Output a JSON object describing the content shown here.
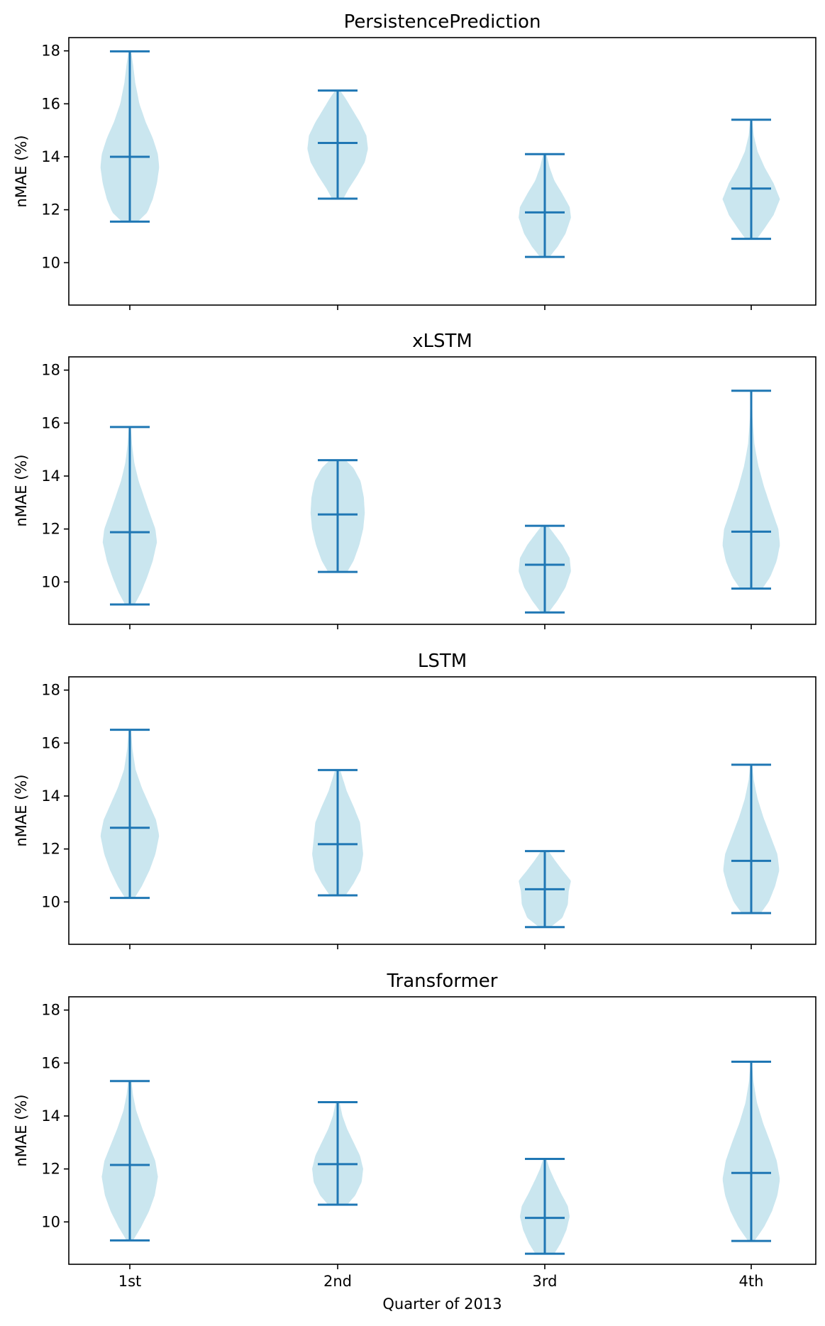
{
  "chart_data": [
    {
      "type": "violin",
      "title": "PersistencePrediction",
      "ylabel": "nMAE (%)",
      "xlabel": "",
      "categories": [
        "1st",
        "2nd",
        "3rd",
        "4th"
      ],
      "ylim": [
        8.4,
        18.5
      ],
      "yticks": [
        "10",
        "12",
        "14",
        "16",
        "18"
      ],
      "grid": false,
      "series": [
        {
          "category": "1st",
          "min": 11.55,
          "median": 14.0,
          "max": 17.98,
          "profile": [
            [
              11.55,
              0.25
            ],
            [
              11.9,
              0.55
            ],
            [
              12.4,
              0.72
            ],
            [
              13.0,
              0.85
            ],
            [
              13.6,
              0.92
            ],
            [
              14.1,
              0.88
            ],
            [
              14.7,
              0.72
            ],
            [
              15.3,
              0.5
            ],
            [
              16.0,
              0.3
            ],
            [
              16.8,
              0.17
            ],
            [
              17.5,
              0.1
            ],
            [
              17.98,
              0.04
            ]
          ]
        },
        {
          "category": "2nd",
          "min": 12.42,
          "median": 14.52,
          "max": 16.5,
          "profile": [
            [
              12.42,
              0.18
            ],
            [
              12.8,
              0.35
            ],
            [
              13.3,
              0.62
            ],
            [
              13.8,
              0.85
            ],
            [
              14.3,
              0.95
            ],
            [
              14.8,
              0.9
            ],
            [
              15.3,
              0.7
            ],
            [
              15.8,
              0.45
            ],
            [
              16.2,
              0.25
            ],
            [
              16.5,
              0.08
            ]
          ]
        },
        {
          "category": "3rd",
          "min": 10.22,
          "median": 11.9,
          "max": 14.1,
          "profile": [
            [
              10.22,
              0.15
            ],
            [
              10.6,
              0.4
            ],
            [
              11.1,
              0.65
            ],
            [
              11.7,
              0.82
            ],
            [
              12.1,
              0.78
            ],
            [
              12.6,
              0.55
            ],
            [
              13.1,
              0.3
            ],
            [
              13.6,
              0.15
            ],
            [
              14.1,
              0.05
            ]
          ]
        },
        {
          "category": "4th",
          "min": 10.9,
          "median": 12.8,
          "max": 15.4,
          "profile": [
            [
              10.9,
              0.18
            ],
            [
              11.3,
              0.42
            ],
            [
              11.8,
              0.7
            ],
            [
              12.4,
              0.9
            ],
            [
              13.0,
              0.7
            ],
            [
              13.6,
              0.42
            ],
            [
              14.2,
              0.2
            ],
            [
              14.8,
              0.08
            ],
            [
              15.4,
              0.03
            ]
          ]
        }
      ]
    },
    {
      "type": "violin",
      "title": "xLSTM",
      "ylabel": "nMAE (%)",
      "xlabel": "",
      "categories": [
        "1st",
        "2nd",
        "3rd",
        "4th"
      ],
      "ylim": [
        8.4,
        18.5
      ],
      "yticks": [
        "10",
        "12",
        "14",
        "16",
        "18"
      ],
      "grid": false,
      "series": [
        {
          "category": "1st",
          "min": 9.15,
          "median": 11.88,
          "max": 15.85,
          "profile": [
            [
              9.15,
              0.15
            ],
            [
              9.6,
              0.35
            ],
            [
              10.2,
              0.55
            ],
            [
              10.8,
              0.72
            ],
            [
              11.5,
              0.85
            ],
            [
              12.0,
              0.8
            ],
            [
              12.6,
              0.62
            ],
            [
              13.2,
              0.45
            ],
            [
              13.8,
              0.28
            ],
            [
              14.5,
              0.14
            ],
            [
              15.2,
              0.07
            ],
            [
              15.85,
              0.03
            ]
          ]
        },
        {
          "category": "2nd",
          "min": 10.38,
          "median": 12.55,
          "max": 14.6,
          "profile": [
            [
              10.38,
              0.3
            ],
            [
              10.8,
              0.5
            ],
            [
              11.4,
              0.68
            ],
            [
              12.0,
              0.8
            ],
            [
              12.6,
              0.85
            ],
            [
              13.2,
              0.82
            ],
            [
              13.8,
              0.72
            ],
            [
              14.3,
              0.5
            ],
            [
              14.6,
              0.25
            ]
          ]
        },
        {
          "category": "3rd",
          "min": 8.85,
          "median": 10.65,
          "max": 12.12,
          "profile": [
            [
              8.85,
              0.12
            ],
            [
              9.3,
              0.4
            ],
            [
              9.8,
              0.65
            ],
            [
              10.4,
              0.82
            ],
            [
              10.9,
              0.78
            ],
            [
              11.4,
              0.55
            ],
            [
              11.8,
              0.3
            ],
            [
              12.12,
              0.1
            ]
          ]
        },
        {
          "category": "4th",
          "min": 9.75,
          "median": 11.9,
          "max": 17.22,
          "profile": [
            [
              9.75,
              0.35
            ],
            [
              10.2,
              0.6
            ],
            [
              10.8,
              0.8
            ],
            [
              11.4,
              0.9
            ],
            [
              12.0,
              0.85
            ],
            [
              12.8,
              0.62
            ],
            [
              13.6,
              0.4
            ],
            [
              14.4,
              0.22
            ],
            [
              15.2,
              0.1
            ],
            [
              16.2,
              0.04
            ],
            [
              17.22,
              0.02
            ]
          ]
        }
      ]
    },
    {
      "type": "violin",
      "title": "LSTM",
      "ylabel": "nMAE (%)",
      "xlabel": "",
      "categories": [
        "1st",
        "2nd",
        "3rd",
        "4th"
      ],
      "ylim": [
        8.4,
        18.5
      ],
      "yticks": [
        "10",
        "12",
        "14",
        "16",
        "18"
      ],
      "grid": false,
      "series": [
        {
          "category": "1st",
          "min": 10.15,
          "median": 12.8,
          "max": 16.5,
          "profile": [
            [
              10.15,
              0.15
            ],
            [
              10.6,
              0.38
            ],
            [
              11.2,
              0.62
            ],
            [
              11.8,
              0.8
            ],
            [
              12.5,
              0.92
            ],
            [
              13.1,
              0.82
            ],
            [
              13.7,
              0.6
            ],
            [
              14.3,
              0.38
            ],
            [
              15.0,
              0.18
            ],
            [
              15.8,
              0.08
            ],
            [
              16.5,
              0.04
            ]
          ]
        },
        {
          "category": "2nd",
          "min": 10.25,
          "median": 12.18,
          "max": 14.98,
          "profile": [
            [
              10.25,
              0.25
            ],
            [
              10.7,
              0.5
            ],
            [
              11.2,
              0.72
            ],
            [
              11.8,
              0.8
            ],
            [
              12.4,
              0.75
            ],
            [
              13.0,
              0.7
            ],
            [
              13.6,
              0.5
            ],
            [
              14.2,
              0.28
            ],
            [
              14.98,
              0.08
            ]
          ]
        },
        {
          "category": "3rd",
          "min": 9.05,
          "median": 10.48,
          "max": 11.92,
          "profile": [
            [
              9.05,
              0.18
            ],
            [
              9.4,
              0.55
            ],
            [
              9.9,
              0.72
            ],
            [
              10.4,
              0.75
            ],
            [
              10.8,
              0.82
            ],
            [
              11.2,
              0.55
            ],
            [
              11.6,
              0.3
            ],
            [
              11.92,
              0.12
            ]
          ]
        },
        {
          "category": "4th",
          "min": 9.58,
          "median": 11.55,
          "max": 15.18,
          "profile": [
            [
              9.58,
              0.3
            ],
            [
              10.0,
              0.55
            ],
            [
              10.6,
              0.75
            ],
            [
              11.2,
              0.88
            ],
            [
              11.8,
              0.82
            ],
            [
              12.5,
              0.6
            ],
            [
              13.2,
              0.38
            ],
            [
              13.9,
              0.2
            ],
            [
              14.6,
              0.08
            ],
            [
              15.18,
              0.03
            ]
          ]
        }
      ]
    },
    {
      "type": "violin",
      "title": "Transformer",
      "ylabel": "nMAE (%)",
      "xlabel": "Quarter of 2013",
      "categories": [
        "1st",
        "2nd",
        "3rd",
        "4th"
      ],
      "ylim": [
        8.4,
        18.5
      ],
      "yticks": [
        "10",
        "12",
        "14",
        "16",
        "18"
      ],
      "grid": false,
      "series": [
        {
          "category": "1st",
          "min": 9.3,
          "median": 12.15,
          "max": 15.32,
          "profile": [
            [
              9.3,
              0.1
            ],
            [
              9.8,
              0.35
            ],
            [
              10.4,
              0.6
            ],
            [
              11.0,
              0.78
            ],
            [
              11.7,
              0.88
            ],
            [
              12.3,
              0.8
            ],
            [
              12.9,
              0.6
            ],
            [
              13.5,
              0.4
            ],
            [
              14.2,
              0.2
            ],
            [
              14.8,
              0.1
            ],
            [
              15.32,
              0.05
            ]
          ]
        },
        {
          "category": "2nd",
          "min": 10.65,
          "median": 12.18,
          "max": 14.52,
          "profile": [
            [
              10.65,
              0.3
            ],
            [
              11.0,
              0.55
            ],
            [
              11.5,
              0.75
            ],
            [
              12.0,
              0.8
            ],
            [
              12.5,
              0.7
            ],
            [
              13.0,
              0.5
            ],
            [
              13.5,
              0.3
            ],
            [
              14.0,
              0.15
            ],
            [
              14.52,
              0.06
            ]
          ]
        },
        {
          "category": "3rd",
          "min": 8.8,
          "median": 10.15,
          "max": 12.38,
          "profile": [
            [
              8.8,
              0.3
            ],
            [
              9.2,
              0.5
            ],
            [
              9.7,
              0.68
            ],
            [
              10.2,
              0.78
            ],
            [
              10.6,
              0.72
            ],
            [
              11.1,
              0.5
            ],
            [
              11.6,
              0.3
            ],
            [
              12.0,
              0.15
            ],
            [
              12.38,
              0.05
            ]
          ]
        },
        {
          "category": "4th",
          "min": 9.28,
          "median": 11.85,
          "max": 16.05,
          "profile": [
            [
              9.28,
              0.1
            ],
            [
              9.8,
              0.4
            ],
            [
              10.4,
              0.65
            ],
            [
              11.0,
              0.82
            ],
            [
              11.6,
              0.9
            ],
            [
              12.3,
              0.8
            ],
            [
              13.0,
              0.6
            ],
            [
              13.7,
              0.38
            ],
            [
              14.5,
              0.18
            ],
            [
              15.3,
              0.07
            ],
            [
              16.05,
              0.02
            ]
          ]
        }
      ]
    }
  ],
  "colors": {
    "violin_fill": "#add8e6",
    "violin_fill_opacity": 0.65,
    "line": "#1f77b4",
    "axes": "#000000"
  }
}
